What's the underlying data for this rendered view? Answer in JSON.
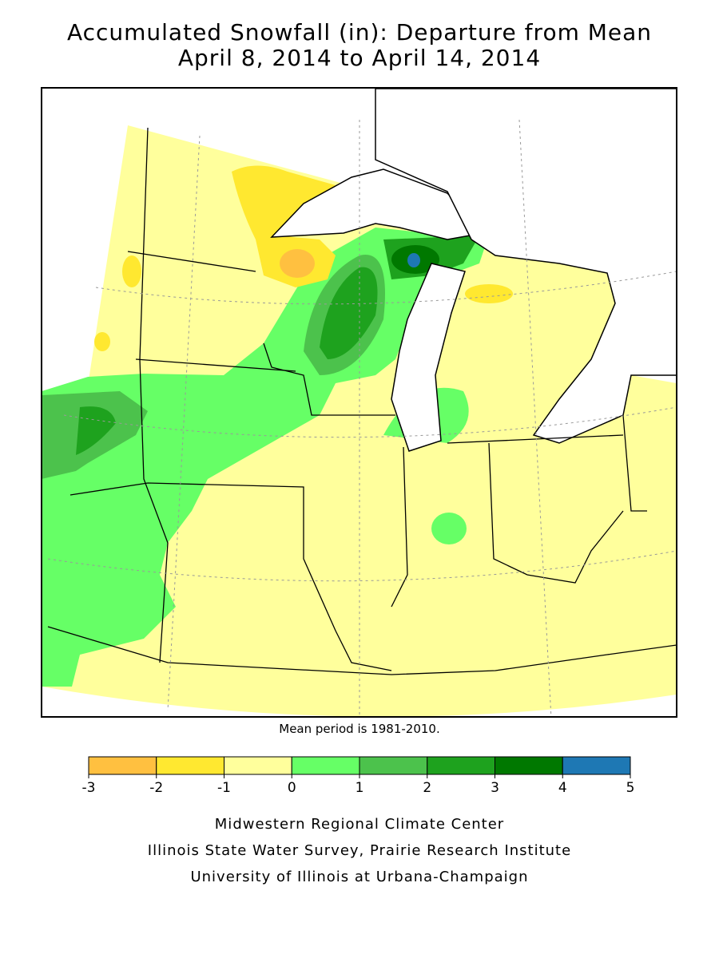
{
  "header": {
    "title": [
      "Accumulated Snowfall (in): Departure from Mean",
      "April 8, 2014 to April 14, 2014"
    ]
  },
  "note": "Mean period is 1981-2010.",
  "legend": {
    "bins": [
      -3,
      -2,
      -1,
      0,
      1,
      2,
      3,
      4,
      5
    ],
    "colors": [
      "#ffc040",
      "#ffe830",
      "#ffff9c",
      "#66ff66",
      "#4cc24c",
      "#1ea21e",
      "#007800",
      "#1e78b4"
    ]
  },
  "credits": [
    "Midwestern Regional Climate Center",
    "Illinois State Water Survey, Prairie Research Institute",
    "University of Illinois at Urbana-Champaign"
  ]
}
